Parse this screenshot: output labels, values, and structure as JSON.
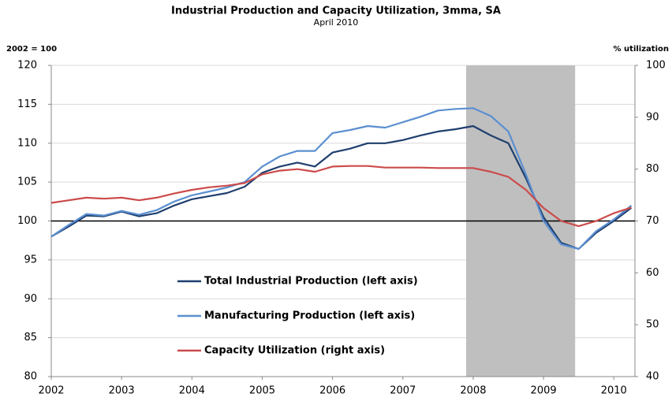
{
  "chart_data": {
    "type": "line",
    "title": "Industrial Production and Capacity Utilization, 3mma, SA",
    "subtitle": "April 2010",
    "y_label": "2002 = 100",
    "y2_label": "% utilization",
    "x": [
      2002,
      2002.25,
      2002.5,
      2002.75,
      2003,
      2003.25,
      2003.5,
      2003.75,
      2004,
      2004.25,
      2004.5,
      2004.75,
      2005,
      2005.25,
      2005.5,
      2005.75,
      2006,
      2006.25,
      2006.5,
      2006.75,
      2007,
      2007.25,
      2007.5,
      2007.75,
      2008,
      2008.25,
      2008.5,
      2008.75,
      2009,
      2009.25,
      2009.5,
      2009.75,
      2010,
      2010.25
    ],
    "series": [
      {
        "name": "Total Industrial Production (left axis)",
        "color": "#1f3f6e",
        "values": [
          98,
          99.3,
          100.7,
          100.6,
          101.2,
          100.6,
          101.0,
          102.0,
          102.8,
          103.2,
          103.6,
          104.4,
          106.2,
          107.0,
          107.5,
          107.0,
          108.8,
          109.3,
          110.0,
          110.0,
          110.4,
          111.0,
          111.5,
          111.8,
          112.2,
          111.0,
          110.0,
          105.5,
          100.5,
          97.2,
          96.4,
          98.5,
          100.0,
          101.7
        ]
      },
      {
        "name": "Manufacturing Production (left axis)",
        "color": "#5b8fd0",
        "values": [
          98,
          99.5,
          100.9,
          100.7,
          101.3,
          100.8,
          101.4,
          102.5,
          103.3,
          103.8,
          104.3,
          105.0,
          107.0,
          108.3,
          109.0,
          109.0,
          111.3,
          111.7,
          112.2,
          112.0,
          112.7,
          113.4,
          114.2,
          114.4,
          114.5,
          113.5,
          111.5,
          106.0,
          100.0,
          97.0,
          96.4,
          98.7,
          100.2,
          102.0
        ]
      },
      {
        "name": "Capacity Utilization (right axis)",
        "color": "#cc4b4b",
        "axis": "y2",
        "values": [
          73.5,
          74.0,
          74.5,
          74.3,
          74.5,
          74.0,
          74.5,
          75.3,
          76.0,
          76.5,
          76.8,
          77.3,
          79.0,
          79.7,
          80.0,
          79.5,
          80.5,
          80.6,
          80.6,
          80.3,
          80.3,
          80.3,
          80.2,
          80.2,
          80.2,
          79.5,
          78.5,
          76.0,
          72.5,
          70.0,
          69.0,
          70.0,
          71.5,
          72.6
        ]
      }
    ],
    "xlim": [
      2002,
      2010.3
    ],
    "xticks": [
      2002,
      2003,
      2004,
      2005,
      2006,
      2007,
      2008,
      2009,
      2010
    ],
    "ylim": [
      80,
      120
    ],
    "yticks": [
      80,
      85,
      90,
      95,
      100,
      105,
      110,
      115,
      120
    ],
    "y2lim": [
      40,
      100
    ],
    "y2ticks": [
      40,
      50,
      60,
      70,
      80,
      90,
      100
    ],
    "shade": [
      2007.9,
      2009.45
    ],
    "reference_line": 100,
    "grid": true,
    "legend": "lower center"
  }
}
